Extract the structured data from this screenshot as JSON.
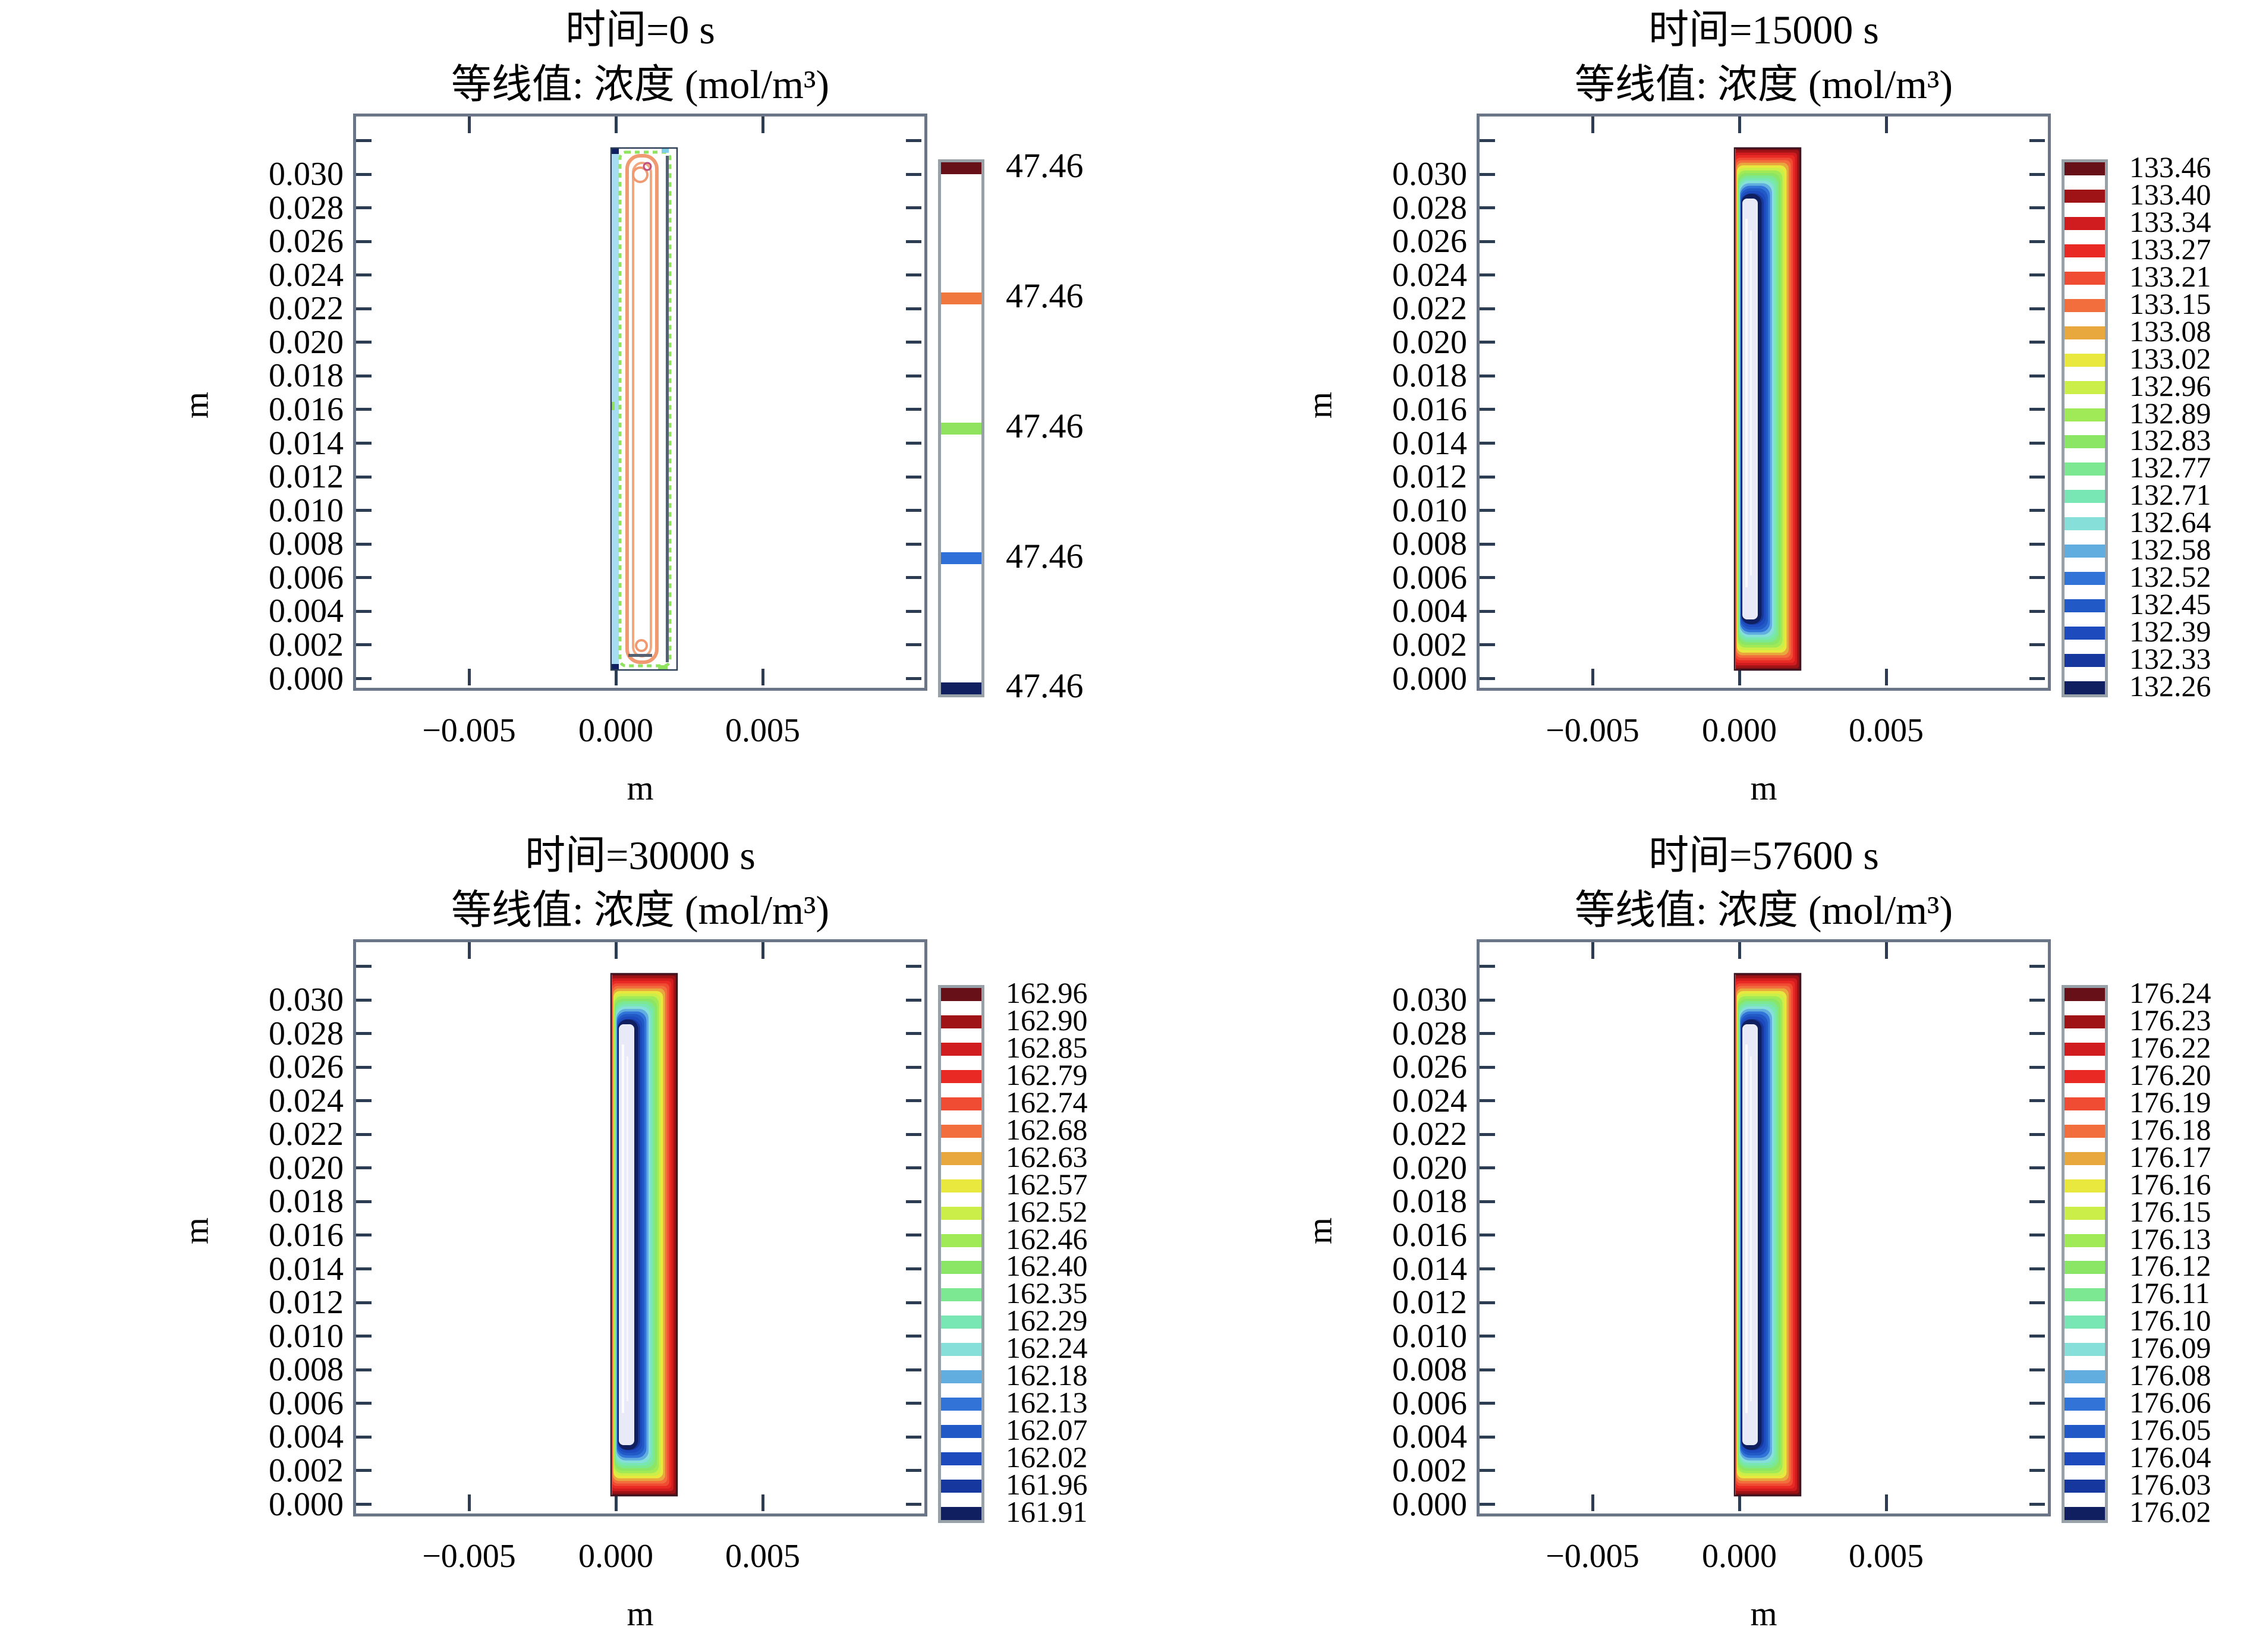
{
  "figure": {
    "background": "#ffffff",
    "description_units": "mol/m³",
    "frame_color": "#6a7587",
    "tick_color": "#2c3c52",
    "colorbar_border_color": "#98a0a8"
  },
  "chart_data": [
    {
      "type": "contour",
      "time_s": 0,
      "time_label": "时间=0 s",
      "value_label": "等线值: 浓度 (mol/m³)",
      "x_axis": {
        "label": "m",
        "tick_labels": [
          "−0.005",
          "0.000",
          "0.005"
        ],
        "ticks": [
          -0.005,
          0.0,
          0.005
        ]
      },
      "y_axis": {
        "label": "m",
        "tick_labels": [
          "0.030",
          "0.028",
          "0.026",
          "0.024",
          "0.022",
          "0.020",
          "0.018",
          "0.016",
          "0.014",
          "0.012",
          "0.010",
          "0.008",
          "0.006",
          "0.004",
          "0.002",
          "0.000"
        ],
        "ticks": [
          0.03,
          0.028,
          0.026,
          0.024,
          0.022,
          0.02,
          0.018,
          0.016,
          0.014,
          0.012,
          0.01,
          0.008,
          0.006,
          0.004,
          0.002,
          0.0
        ]
      },
      "levels": [
        "47.46",
        "47.46",
        "47.46",
        "47.46",
        "47.46"
      ],
      "legend_colors": [
        "#671018",
        "#f0783f",
        "#8fe35f",
        "#2e6fd8",
        "#0f1f60"
      ],
      "contour_style": "uniform-outlines",
      "geometry": {
        "x_range_m": [
          0.0,
          0.002
        ],
        "y_range_m": [
          0.0,
          0.0315
        ]
      }
    },
    {
      "type": "contour",
      "time_s": 15000,
      "time_label": "时间=15000 s",
      "value_label": "等线值: 浓度 (mol/m³)",
      "x_axis": {
        "label": "m",
        "tick_labels": [
          "−0.005",
          "0.000",
          "0.005"
        ],
        "ticks": [
          -0.005,
          0.0,
          0.005
        ]
      },
      "y_axis": {
        "label": "m",
        "tick_labels": [
          "0.030",
          "0.028",
          "0.026",
          "0.024",
          "0.022",
          "0.020",
          "0.018",
          "0.016",
          "0.014",
          "0.012",
          "0.010",
          "0.008",
          "0.006",
          "0.004",
          "0.002",
          "0.000"
        ],
        "ticks": [
          0.03,
          0.028,
          0.026,
          0.024,
          0.022,
          0.02,
          0.018,
          0.016,
          0.014,
          0.012,
          0.01,
          0.008,
          0.006,
          0.004,
          0.002,
          0.0
        ]
      },
      "levels": [
        "133.46",
        "133.40",
        "133.34",
        "133.27",
        "133.21",
        "133.15",
        "133.08",
        "133.02",
        "132.96",
        "132.89",
        "132.83",
        "132.77",
        "132.71",
        "132.64",
        "132.58",
        "132.52",
        "132.45",
        "132.39",
        "132.33",
        "132.26"
      ],
      "legend_colors": [
        "#671018",
        "#9f1216",
        "#d01c1e",
        "#e92a24",
        "#ef4c33",
        "#f26e3c",
        "#e9a83e",
        "#e8e83f",
        "#ccee49",
        "#a0e957",
        "#8ae664",
        "#7ce891",
        "#78e7b4",
        "#86dfd8",
        "#61ade0",
        "#3173d6",
        "#2159c7",
        "#1d4abc",
        "#16389e",
        "#0f1f60"
      ],
      "contour_style": "rainbow-bands",
      "geometry": {
        "x_range_m": [
          0.0,
          0.002
        ],
        "y_range_m": [
          0.0,
          0.0315
        ]
      }
    },
    {
      "type": "contour",
      "time_s": 30000,
      "time_label": "时间=30000 s",
      "value_label": "等线值: 浓度 (mol/m³)",
      "x_axis": {
        "label": "m",
        "tick_labels": [
          "−0.005",
          "0.000",
          "0.005"
        ],
        "ticks": [
          -0.005,
          0.0,
          0.005
        ]
      },
      "y_axis": {
        "label": "m",
        "tick_labels": [
          "0.030",
          "0.028",
          "0.026",
          "0.024",
          "0.022",
          "0.020",
          "0.018",
          "0.016",
          "0.014",
          "0.012",
          "0.010",
          "0.008",
          "0.006",
          "0.004",
          "0.002",
          "0.000"
        ],
        "ticks": [
          0.03,
          0.028,
          0.026,
          0.024,
          0.022,
          0.02,
          0.018,
          0.016,
          0.014,
          0.012,
          0.01,
          0.008,
          0.006,
          0.004,
          0.002,
          0.0
        ]
      },
      "levels": [
        "162.96",
        "162.90",
        "162.85",
        "162.79",
        "162.74",
        "162.68",
        "162.63",
        "162.57",
        "162.52",
        "162.46",
        "162.40",
        "162.35",
        "162.29",
        "162.24",
        "162.18",
        "162.13",
        "162.07",
        "162.02",
        "161.96",
        "161.91"
      ],
      "legend_colors": [
        "#671018",
        "#9f1216",
        "#d01c1e",
        "#e92a24",
        "#ef4c33",
        "#f26e3c",
        "#e9a83e",
        "#e8e83f",
        "#ccee49",
        "#a0e957",
        "#8ae664",
        "#7ce891",
        "#78e7b4",
        "#86dfd8",
        "#61ade0",
        "#3173d6",
        "#2159c7",
        "#1d4abc",
        "#16389e",
        "#0f1f60"
      ],
      "contour_style": "rainbow-bands",
      "geometry": {
        "x_range_m": [
          0.0,
          0.002
        ],
        "y_range_m": [
          0.0,
          0.0315
        ]
      }
    },
    {
      "type": "contour",
      "time_s": 57600,
      "time_label": "时间=57600 s",
      "value_label": "等线值: 浓度 (mol/m³)",
      "x_axis": {
        "label": "m",
        "tick_labels": [
          "−0.005",
          "0.000",
          "0.005"
        ],
        "ticks": [
          -0.005,
          0.0,
          0.005
        ]
      },
      "y_axis": {
        "label": "m",
        "tick_labels": [
          "0.030",
          "0.028",
          "0.026",
          "0.024",
          "0.022",
          "0.020",
          "0.018",
          "0.016",
          "0.014",
          "0.012",
          "0.010",
          "0.008",
          "0.006",
          "0.004",
          "0.002",
          "0.000"
        ],
        "ticks": [
          0.03,
          0.028,
          0.026,
          0.024,
          0.022,
          0.02,
          0.018,
          0.016,
          0.014,
          0.012,
          0.01,
          0.008,
          0.006,
          0.004,
          0.002,
          0.0
        ]
      },
      "levels": [
        "176.24",
        "176.23",
        "176.22",
        "176.20",
        "176.19",
        "176.18",
        "176.17",
        "176.16",
        "176.15",
        "176.13",
        "176.12",
        "176.11",
        "176.10",
        "176.09",
        "176.08",
        "176.06",
        "176.05",
        "176.04",
        "176.03",
        "176.02"
      ],
      "legend_colors": [
        "#671018",
        "#9f1216",
        "#d01c1e",
        "#e92a24",
        "#ef4c33",
        "#f26e3c",
        "#e9a83e",
        "#e8e83f",
        "#ccee49",
        "#a0e957",
        "#8ae664",
        "#7ce891",
        "#78e7b4",
        "#86dfd8",
        "#61ade0",
        "#3173d6",
        "#2159c7",
        "#1d4abc",
        "#16389e",
        "#0f1f60"
      ],
      "contour_style": "rainbow-bands",
      "geometry": {
        "x_range_m": [
          0.0,
          0.002
        ],
        "y_range_m": [
          0.0,
          0.0315
        ]
      }
    }
  ]
}
